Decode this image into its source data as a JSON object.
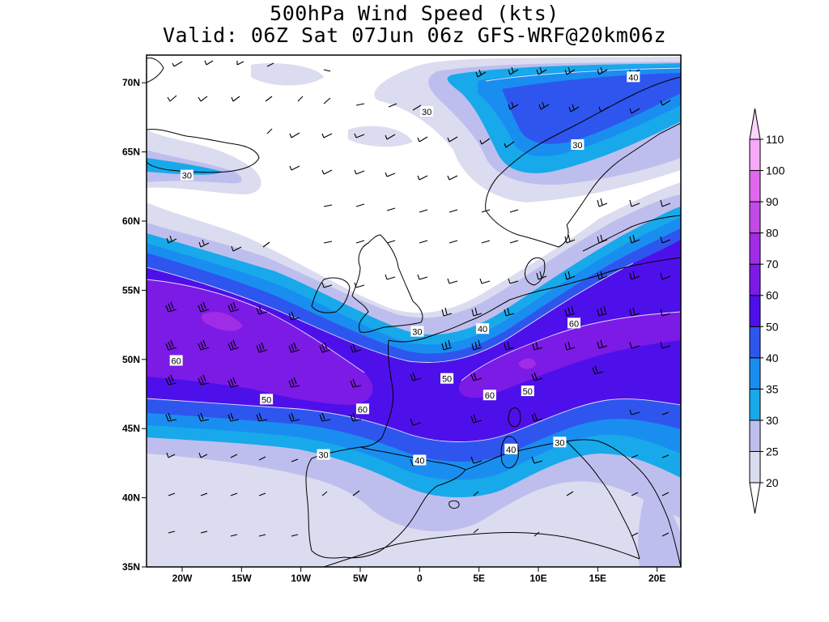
{
  "title": {
    "line1": "500hPa Wind Speed (kts)",
    "line2": "Valid: 06Z Sat 07Jun 06z GFS-WRF@20km06z"
  },
  "map": {
    "lon_range": [
      -23,
      22
    ],
    "lat_range": [
      35,
      72
    ],
    "lat_ticks": [
      {
        "value": 70,
        "label": "70N"
      },
      {
        "value": 65,
        "label": "65N"
      },
      {
        "value": 60,
        "label": "60N"
      },
      {
        "value": 55,
        "label": "55N"
      },
      {
        "value": 50,
        "label": "50N"
      },
      {
        "value": 45,
        "label": "45N"
      },
      {
        "value": 40,
        "label": "40N"
      },
      {
        "value": 35,
        "label": "35N"
      }
    ],
    "lon_ticks": [
      {
        "value": -20,
        "label": "20W"
      },
      {
        "value": -15,
        "label": "15W"
      },
      {
        "value": -10,
        "label": "10W"
      },
      {
        "value": -5,
        "label": "5W"
      },
      {
        "value": 0,
        "label": "0"
      },
      {
        "value": 5,
        "label": "5E"
      },
      {
        "value": 10,
        "label": "10E"
      },
      {
        "value": 15,
        "label": "15E"
      },
      {
        "value": 20,
        "label": "20E"
      }
    ],
    "contour_labels": [
      {
        "text": "40",
        "lon": 18.0,
        "lat": 70.4
      },
      {
        "text": "30",
        "lon": 0.6,
        "lat": 67.9
      },
      {
        "text": "30",
        "lon": 13.3,
        "lat": 65.5
      },
      {
        "text": "30",
        "lon": -19.6,
        "lat": 63.3
      },
      {
        "text": "40",
        "lon": 5.3,
        "lat": 52.2
      },
      {
        "text": "30",
        "lon": -0.2,
        "lat": 52.0
      },
      {
        "text": "60",
        "lon": 13.0,
        "lat": 52.6
      },
      {
        "text": "60",
        "lon": -20.5,
        "lat": 49.9
      },
      {
        "text": "50",
        "lon": 2.3,
        "lat": 48.6
      },
      {
        "text": "60",
        "lon": 5.9,
        "lat": 47.4
      },
      {
        "text": "50",
        "lon": 9.1,
        "lat": 47.7
      },
      {
        "text": "50",
        "lon": -12.9,
        "lat": 47.1
      },
      {
        "text": "60",
        "lon": -4.8,
        "lat": 46.4
      },
      {
        "text": "30",
        "lon": -8.1,
        "lat": 43.1
      },
      {
        "text": "40",
        "lon": 0.0,
        "lat": 42.7
      },
      {
        "text": "40",
        "lon": 7.7,
        "lat": 43.5
      },
      {
        "text": "30",
        "lon": 11.8,
        "lat": 44.0
      }
    ]
  },
  "colorbar": {
    "colors": [
      "#ffffff",
      "#dcdcf0",
      "#bebeee",
      "#18a9ea",
      "#1a8ef0",
      "#2e56ee",
      "#4e10ea",
      "#7c1ae6",
      "#a12ce6",
      "#c44ae8",
      "#e168ee",
      "#f8a8f8",
      "#fbd6fb"
    ],
    "labels": [
      "20",
      "25",
      "30",
      "35",
      "40",
      "50",
      "60",
      "70",
      "80",
      "90",
      "100",
      "110"
    ]
  },
  "legend_colors": {
    "c20": "#dcdcf0",
    "c25": "#bebeee",
    "c30": "#18a9ea",
    "c35": "#1a8ef0",
    "c40": "#2e56ee",
    "c50": "#4e10ea",
    "c60": "#7c1ae6",
    "c70": "#a12ce6"
  }
}
